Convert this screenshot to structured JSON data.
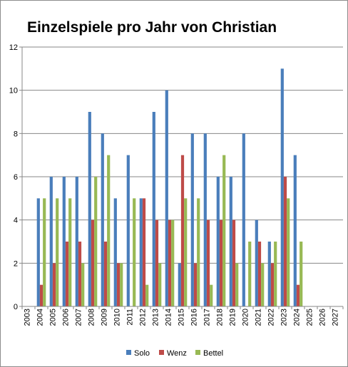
{
  "chart_data": {
    "type": "bar",
    "title": "Einzelspiele pro Jahr von Christian",
    "xlabel": "",
    "ylabel": "",
    "ylim": [
      0,
      12
    ],
    "y_ticks": [
      "0",
      "2",
      "4",
      "6",
      "8",
      "10",
      "12"
    ],
    "grid": true,
    "legend_position": "bottom",
    "categories": [
      "2003",
      "2004",
      "2005",
      "2006",
      "2007",
      "2008",
      "2009",
      "2010",
      "2011",
      "2012",
      "2013",
      "2014",
      "2015",
      "2016",
      "2017",
      "2018",
      "2019",
      "2020",
      "2021",
      "2022",
      "2023",
      "2024",
      "2025",
      "2026",
      "2027"
    ],
    "series": [
      {
        "name": "Solo",
        "color": "#4a7ebb",
        "values": [
          0,
          5,
          6,
          6,
          6,
          9,
          8,
          5,
          7,
          5,
          9,
          10,
          2,
          8,
          8,
          6,
          6,
          8,
          4,
          3,
          11,
          7,
          0,
          0,
          0
        ]
      },
      {
        "name": "Wenz",
        "color": "#be4b48",
        "values": [
          0,
          1,
          2,
          3,
          3,
          4,
          3,
          2,
          0,
          5,
          4,
          4,
          7,
          2,
          4,
          4,
          4,
          0,
          3,
          2,
          6,
          1,
          0,
          0,
          0
        ]
      },
      {
        "name": "Bettel",
        "color": "#98b954",
        "values": [
          0,
          5,
          5,
          5,
          2,
          6,
          7,
          2,
          5,
          1,
          2,
          4,
          5,
          5,
          1,
          7,
          2,
          3,
          2,
          3,
          5,
          3,
          0,
          0,
          0
        ]
      }
    ]
  }
}
